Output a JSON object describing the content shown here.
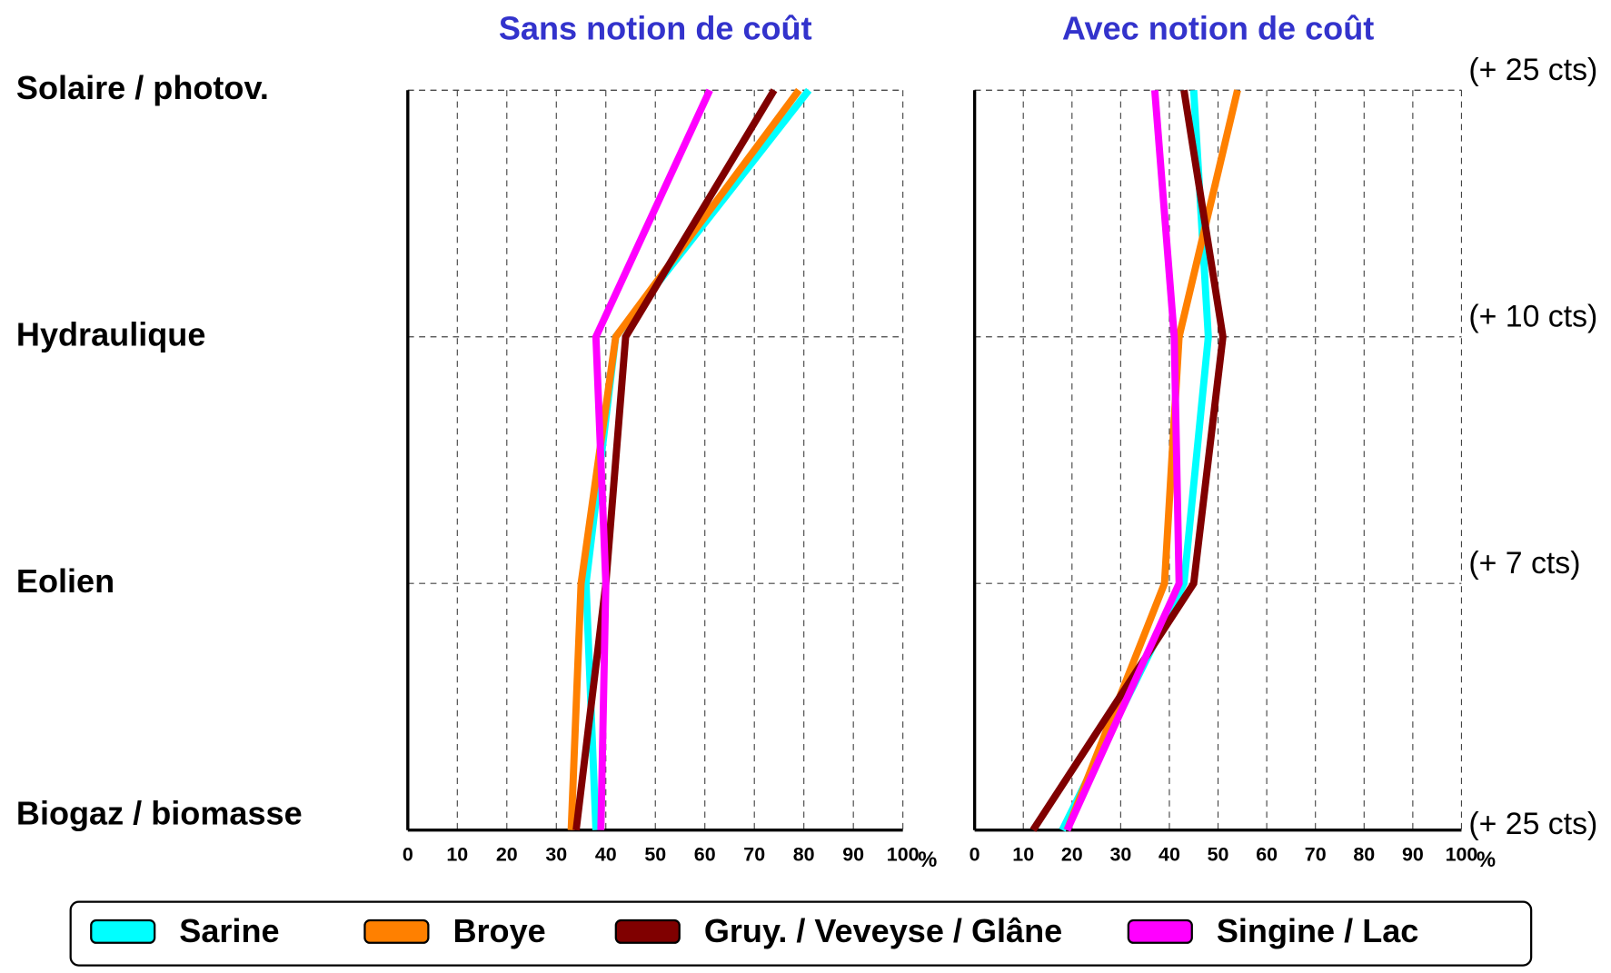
{
  "chart_data": [
    {
      "type": "line",
      "title": "Sans notion de coût",
      "categories": [
        "Solaire / photov.",
        "Hydraulique",
        "Eolien",
        "Biogaz / biomasse"
      ],
      "xlim": [
        0,
        100
      ],
      "xticks": [
        0,
        10,
        20,
        30,
        40,
        50,
        60,
        70,
        80,
        90,
        100
      ],
      "xlabel": "%",
      "grid": true,
      "series": [
        {
          "name": "Sarine",
          "color": "#00ffff",
          "values": [
            81,
            42,
            36,
            38
          ]
        },
        {
          "name": "Broye",
          "color": "#ff8000",
          "values": [
            79,
            42,
            35,
            33
          ]
        },
        {
          "name": "Gruy. / Veveyse / Glâne",
          "color": "#800000",
          "values": [
            74,
            44,
            40,
            34
          ]
        },
        {
          "name": "Singine / Lac",
          "color": "#ff00ff",
          "values": [
            61,
            38,
            40,
            39
          ]
        }
      ]
    },
    {
      "type": "line",
      "title": "Avec notion de coût",
      "categories": [
        "(+ 25 cts)",
        "(+ 10 cts)",
        "(+ 7 cts)",
        "(+ 25 cts)"
      ],
      "xlim": [
        0,
        100
      ],
      "xticks": [
        0,
        10,
        20,
        30,
        40,
        50,
        60,
        70,
        80,
        90,
        100
      ],
      "xlabel": "%",
      "grid": true,
      "series": [
        {
          "name": "Sarine",
          "color": "#00ffff",
          "values": [
            45,
            48,
            43,
            18
          ]
        },
        {
          "name": "Broye",
          "color": "#ff8000",
          "values": [
            54,
            42,
            39,
            19
          ]
        },
        {
          "name": "Gruy. / Veveyse / Glâne",
          "color": "#800000",
          "values": [
            43,
            51,
            45,
            12
          ]
        },
        {
          "name": "Singine / Lac",
          "color": "#ff00ff",
          "values": [
            37,
            41,
            42,
            19
          ]
        }
      ]
    }
  ]
}
